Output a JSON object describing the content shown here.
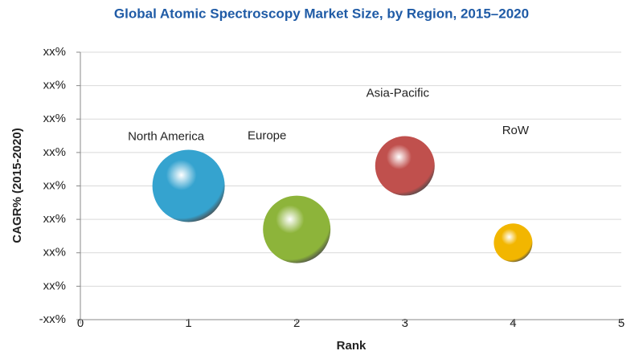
{
  "chart_data": {
    "type": "bubble",
    "title": "Global Atomic Spectroscopy Market Size, by Region, 2015–2020",
    "x_label": "Rank",
    "y_label": "CAGR% (2015-2020)",
    "xlim": [
      0,
      5
    ],
    "xticks": [
      0,
      1,
      2,
      3,
      4,
      5
    ],
    "ylim": [
      0,
      8
    ],
    "yticks": [
      {
        "value": 0,
        "label": "-xx%"
      },
      {
        "value": 1,
        "label": "xx%"
      },
      {
        "value": 2,
        "label": "xx%"
      },
      {
        "value": 3,
        "label": "xx%"
      },
      {
        "value": 4,
        "label": "xx%"
      },
      {
        "value": 5,
        "label": "xx%"
      },
      {
        "value": 6,
        "label": "xx%"
      },
      {
        "value": 7,
        "label": "xx%"
      },
      {
        "value": 8,
        "label": "xx%"
      }
    ],
    "grid": true,
    "series": [
      {
        "name": "North America",
        "color": "#35a3cf",
        "x": [
          1
        ],
        "values": [
          4.0
        ],
        "sizes": [
          45
        ]
      },
      {
        "name": "Europe",
        "color": "#8db43a",
        "x": [
          2
        ],
        "values": [
          2.7
        ],
        "sizes": [
          42
        ]
      },
      {
        "name": "Asia-Pacific",
        "color": "#c0504d",
        "x": [
          3
        ],
        "values": [
          4.6
        ],
        "sizes": [
          37
        ]
      },
      {
        "name": "RoW",
        "color": "#f2b600",
        "x": [
          4
        ],
        "values": [
          2.3
        ],
        "sizes": [
          24
        ]
      }
    ]
  }
}
